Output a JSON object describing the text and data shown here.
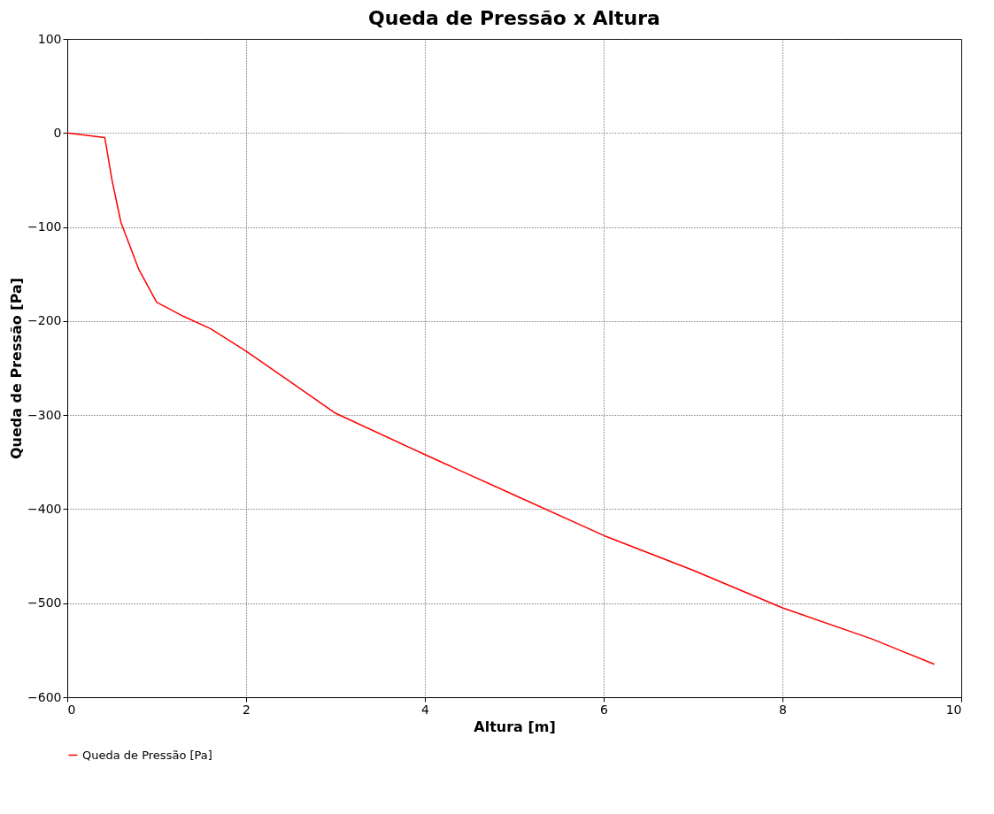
{
  "chart_data": {
    "type": "line",
    "title": "Queda de Pressão x Altura",
    "xlabel": "Altura [m]",
    "ylabel": "Queda de Pressão [Pa]",
    "xlim": [
      0,
      10
    ],
    "xticks": [
      0,
      2,
      4,
      6,
      8,
      10
    ],
    "ylim": [
      -600,
      100
    ],
    "yticks": [
      -600,
      -500,
      -400,
      -300,
      -200,
      -100,
      0,
      100
    ],
    "grid": true,
    "legend": "bottom",
    "series": [
      {
        "name": "Queda de Pressão [Pa]",
        "color": "#ff0000",
        "x": [
          0,
          0.42,
          0.5,
          0.6,
          0.8,
          1.0,
          1.3,
          1.6,
          2.0,
          2.5,
          3.0,
          4.0,
          5.0,
          6.0,
          7.0,
          8.0,
          9.0,
          9.7
        ],
        "values": [
          0,
          -5,
          -50,
          -95,
          -145,
          -180,
          -195,
          -208,
          -232,
          -265,
          -298,
          -342,
          -385,
          -428,
          -465,
          -505,
          -538,
          -565
        ]
      }
    ]
  }
}
